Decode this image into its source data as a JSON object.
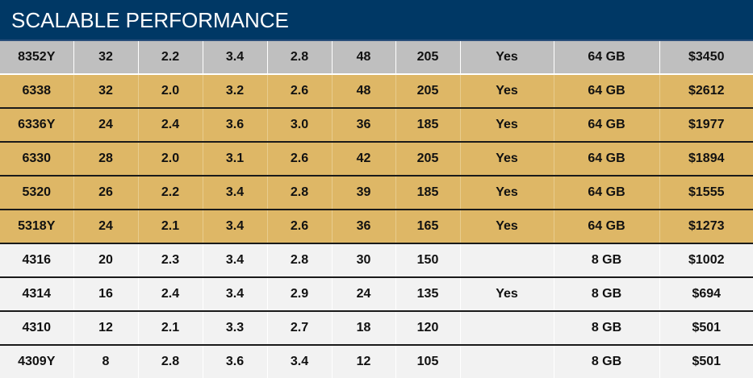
{
  "header": {
    "title": "SCALABLE PERFORMANCE"
  },
  "colors": {
    "header_bg": "#003865",
    "flagship_row": "#bfbfbf",
    "highlight_row": "#deb766",
    "standard_row": "#f2f2f2"
  },
  "rows": [
    {
      "style": "gray",
      "cells": [
        "8352Y",
        "32",
        "2.2",
        "3.4",
        "2.8",
        "48",
        "205",
        "Yes",
        "64 GB",
        "$3450"
      ]
    },
    {
      "style": "gold",
      "cells": [
        "6338",
        "32",
        "2.0",
        "3.2",
        "2.6",
        "48",
        "205",
        "Yes",
        "64 GB",
        "$2612"
      ]
    },
    {
      "style": "gold",
      "cells": [
        "6336Y",
        "24",
        "2.4",
        "3.6",
        "3.0",
        "36",
        "185",
        "Yes",
        "64 GB",
        "$1977"
      ]
    },
    {
      "style": "gold",
      "cells": [
        "6330",
        "28",
        "2.0",
        "3.1",
        "2.6",
        "42",
        "205",
        "Yes",
        "64 GB",
        "$1894"
      ]
    },
    {
      "style": "gold",
      "cells": [
        "5320",
        "26",
        "2.2",
        "3.4",
        "2.8",
        "39",
        "185",
        "Yes",
        "64 GB",
        "$1555"
      ]
    },
    {
      "style": "gold",
      "cells": [
        "5318Y",
        "24",
        "2.1",
        "3.4",
        "2.6",
        "36",
        "165",
        "Yes",
        "64 GB",
        "$1273"
      ]
    },
    {
      "style": "light",
      "cells": [
        "4316",
        "20",
        "2.3",
        "3.4",
        "2.8",
        "30",
        "150",
        "",
        "8 GB",
        "$1002"
      ]
    },
    {
      "style": "light",
      "cells": [
        "4314",
        "16",
        "2.4",
        "3.4",
        "2.9",
        "24",
        "135",
        "Yes",
        "8 GB",
        "$694"
      ]
    },
    {
      "style": "light",
      "cells": [
        "4310",
        "12",
        "2.1",
        "3.3",
        "2.7",
        "18",
        "120",
        "",
        "8 GB",
        "$501"
      ]
    },
    {
      "style": "light",
      "cells": [
        "4309Y",
        "8",
        "2.8",
        "3.6",
        "3.4",
        "12",
        "105",
        "",
        "8 GB",
        "$501"
      ]
    }
  ]
}
